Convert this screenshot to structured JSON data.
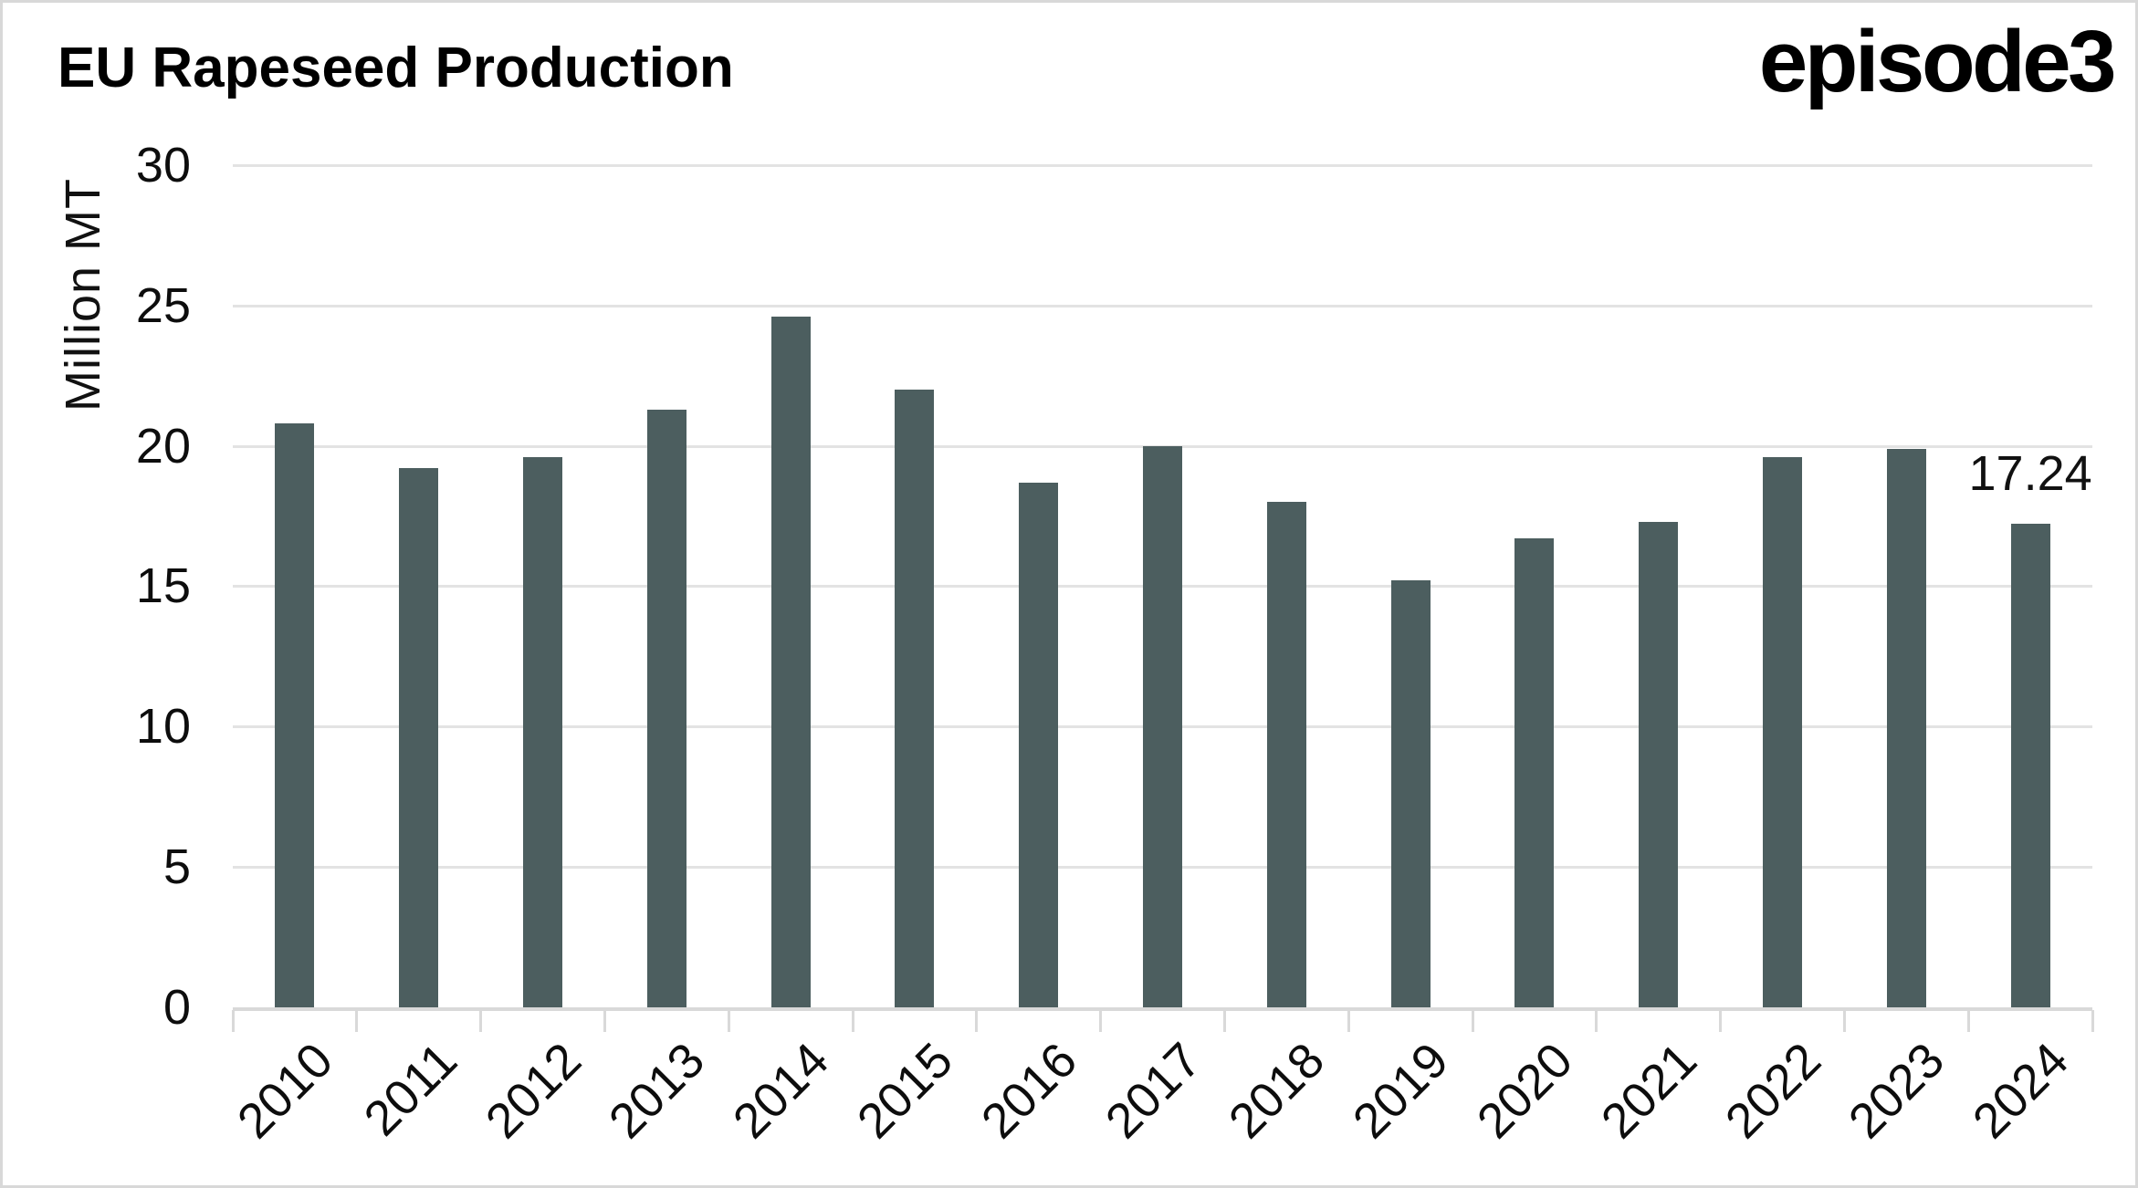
{
  "branding": {
    "logo_text": "episode3"
  },
  "chart_data": {
    "type": "bar",
    "title": "EU Rapeseed Production",
    "ylabel": "Million MT",
    "xlabel": "",
    "categories": [
      "2010",
      "2011",
      "2012",
      "2013",
      "2014",
      "2015",
      "2016",
      "2017",
      "2018",
      "2019",
      "2020",
      "2021",
      "2022",
      "2023",
      "2024"
    ],
    "values": [
      20.8,
      19.2,
      19.6,
      21.3,
      24.6,
      22.0,
      18.7,
      20.0,
      18.0,
      15.2,
      16.7,
      17.3,
      19.6,
      19.9,
      17.24
    ],
    "unit": "Million MT",
    "ylim": [
      0,
      30
    ],
    "yticks": [
      0,
      5,
      10,
      15,
      20,
      25,
      30
    ],
    "grid": true,
    "legend_position": "none",
    "x_tick_rotation_deg": 45,
    "annotation": {
      "category": "2024",
      "text": "17.24"
    },
    "colors": {
      "bar": "#4c5e5f",
      "gridline": "#e3e3e3",
      "axis": "#d9d9d9",
      "text": "#0d0d0d",
      "background": "#ffffff",
      "frame_border": "#d8d8d8"
    }
  }
}
